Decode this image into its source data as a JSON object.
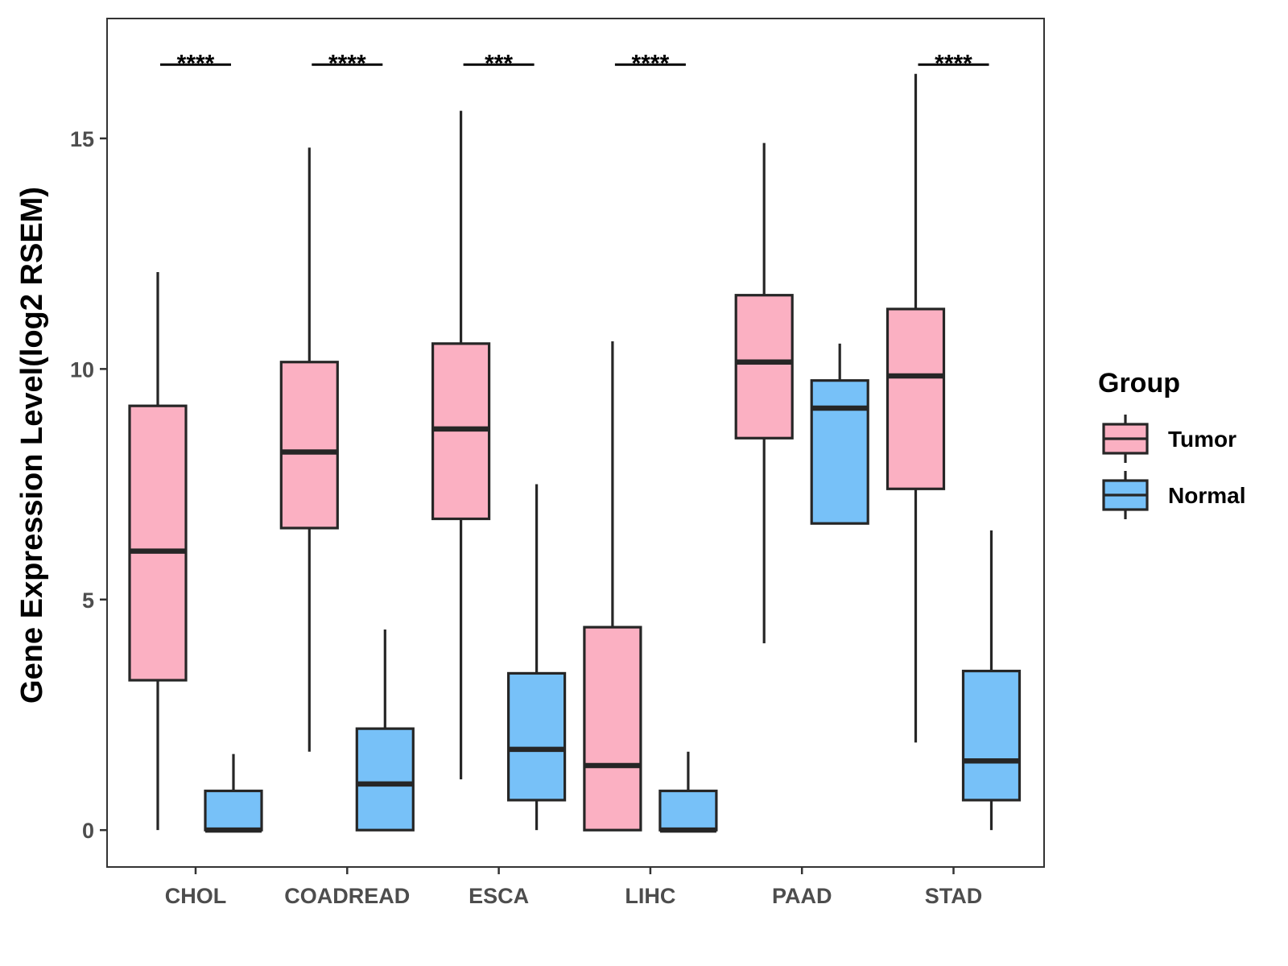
{
  "chart_data": {
    "type": "box",
    "title": "",
    "xlabel": "",
    "ylabel": "Gene Expression Level(log2 RSEM)",
    "ylim": [
      -0.8,
      17.6
    ],
    "yticks": [
      0,
      5,
      10,
      15
    ],
    "categories": [
      "CHOL",
      "COADREAD",
      "ESCA",
      "LIHC",
      "PAAD",
      "STAD"
    ],
    "legend": {
      "title": "Group",
      "position": "right",
      "entries": [
        {
          "name": "Tumor",
          "color": "#FBB0C2"
        },
        {
          "name": "Normal",
          "color": "#77C1F8"
        }
      ]
    },
    "series": [
      {
        "name": "Tumor",
        "color": "#FBB0C2",
        "boxes": [
          {
            "category": "CHOL",
            "min": 0.0,
            "q1": 3.25,
            "median": 6.05,
            "q3": 9.2,
            "max": 12.1
          },
          {
            "category": "COADREAD",
            "min": 1.7,
            "q1": 6.55,
            "median": 8.2,
            "q3": 10.15,
            "max": 14.8
          },
          {
            "category": "ESCA",
            "min": 1.1,
            "q1": 6.75,
            "median": 8.7,
            "q3": 10.55,
            "max": 15.6
          },
          {
            "category": "LIHC",
            "min": 0.0,
            "q1": 0.0,
            "median": 1.4,
            "q3": 4.4,
            "max": 10.6
          },
          {
            "category": "PAAD",
            "min": 4.05,
            "q1": 8.5,
            "median": 10.15,
            "q3": 11.6,
            "max": 14.9
          },
          {
            "category": "STAD",
            "min": 1.9,
            "q1": 7.4,
            "median": 9.85,
            "q3": 11.3,
            "max": 16.4
          }
        ]
      },
      {
        "name": "Normal",
        "color": "#77C1F8",
        "boxes": [
          {
            "category": "CHOL",
            "min": 0.0,
            "q1": 0.0,
            "median": 0.0,
            "q3": 0.85,
            "max": 1.65
          },
          {
            "category": "COADREAD",
            "min": 0.0,
            "q1": 0.0,
            "median": 1.0,
            "q3": 2.2,
            "max": 4.35
          },
          {
            "category": "ESCA",
            "min": 0.0,
            "q1": 0.65,
            "median": 1.75,
            "q3": 3.4,
            "max": 7.5
          },
          {
            "category": "LIHC",
            "min": 0.0,
            "q1": 0.0,
            "median": 0.0,
            "q3": 0.85,
            "max": 1.7
          },
          {
            "category": "PAAD",
            "min": 6.65,
            "q1": 6.65,
            "median": 9.15,
            "q3": 9.75,
            "max": 10.55
          },
          {
            "category": "STAD",
            "min": 0.0,
            "q1": 0.65,
            "median": 1.5,
            "q3": 3.45,
            "max": 6.5
          }
        ]
      }
    ],
    "significance": [
      {
        "category": "CHOL",
        "label": "****",
        "y": 16.6
      },
      {
        "category": "COADREAD",
        "label": "****",
        "y": 16.6
      },
      {
        "category": "ESCA",
        "label": "***",
        "y": 16.6
      },
      {
        "category": "LIHC",
        "label": "****",
        "y": 16.6
      },
      {
        "category": "STAD",
        "label": "****",
        "y": 16.6
      }
    ],
    "grid": false
  }
}
